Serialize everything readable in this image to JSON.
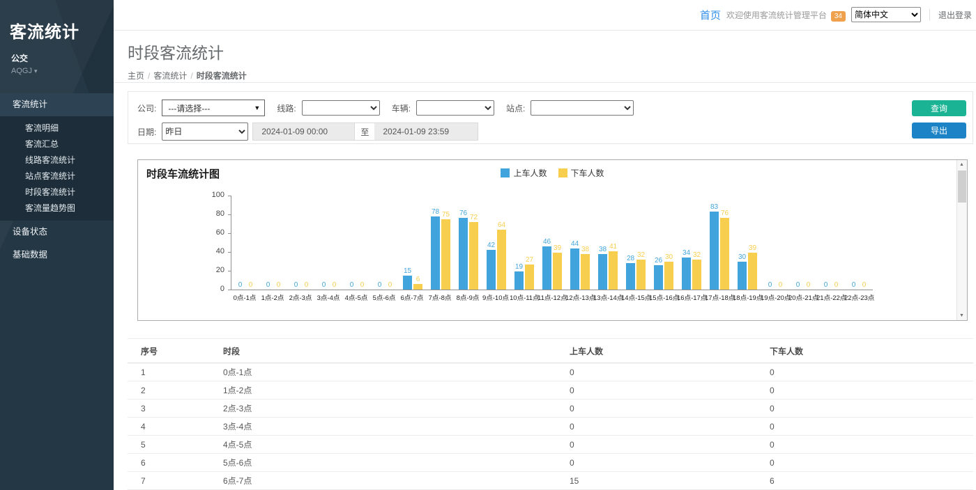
{
  "sidebar": {
    "brand": "客流统计",
    "org": "公交",
    "agency": "AQGJ",
    "sections": [
      {
        "label": "客流统计",
        "expanded": true,
        "active_child": "时段客流统计",
        "children": [
          "客流明细",
          "客流汇总",
          "线路客流统计",
          "站点客流统计",
          "时段客流统计",
          "客流量趋势图"
        ]
      },
      {
        "label": "设备状态",
        "expanded": false,
        "children": []
      },
      {
        "label": "基础数据",
        "expanded": false,
        "children": []
      }
    ]
  },
  "topbar": {
    "home": "首页",
    "welcome": "欢迎使用客流统计管理平台",
    "badge": "34",
    "language": "简体中文",
    "logout": "退出登录"
  },
  "page": {
    "title": "时段客流统计",
    "breadcrumb": [
      "主页",
      "客流统计",
      "时段客流统计"
    ]
  },
  "filters": {
    "company_label": "公司:",
    "company_value": "---请选择---",
    "line_label": "线路:",
    "vehicle_label": "车辆:",
    "station_label": "站点:",
    "date_label": "日期:",
    "date_preset": "昨日",
    "date_start": "2024-01-09 00:00",
    "date_to_label": "至",
    "date_end": "2024-01-09 23:59",
    "query_button": "查询",
    "export_button": "导出"
  },
  "colors": {
    "boarding_blue": "#41a4dc",
    "alighting_yellow": "#f8ce4e",
    "query_green": "#1ab394",
    "export_blue": "#1c84c6",
    "badge_orange": "#efa14d",
    "home_link_blue": "#2e8ded",
    "sidebar_dark": "#243744"
  },
  "chart_data": {
    "type": "bar",
    "title": "时段车流统计图",
    "categories": [
      "0点-1点",
      "1点-2点",
      "2点-3点",
      "3点-4点",
      "4点-5点",
      "5点-6点",
      "6点-7点",
      "7点-8点",
      "8点-9点",
      "9点-10点",
      "10点-11点",
      "11点-12点",
      "12点-13点",
      "13点-14点",
      "14点-15点",
      "15点-16点",
      "16点-17点",
      "17点-18点",
      "18点-19点",
      "19点-20点",
      "20点-21点",
      "21点-22点",
      "22点-23点"
    ],
    "series": [
      {
        "name": "上车人数",
        "color": "#41a4dc",
        "values": [
          0,
          0,
          0,
          0,
          0,
          0,
          15,
          78,
          76,
          42,
          19,
          46,
          44,
          38,
          28,
          26,
          34,
          83,
          30,
          0,
          0,
          0,
          0
        ]
      },
      {
        "name": "下车人数",
        "color": "#f8ce4e",
        "values": [
          0,
          0,
          0,
          0,
          0,
          0,
          6,
          75,
          72,
          64,
          27,
          39,
          38,
          41,
          32,
          30,
          32,
          76,
          39,
          0,
          0,
          0,
          0
        ]
      }
    ],
    "ylim": [
      0,
      100
    ],
    "yticks": [
      0,
      20,
      40,
      60,
      80,
      100
    ],
    "grid": false,
    "legend_position": "top-center"
  },
  "table": {
    "columns": [
      "序号",
      "时段",
      "上车人数",
      "下车人数"
    ],
    "rows": [
      [
        "1",
        "0点-1点",
        "0",
        "0"
      ],
      [
        "2",
        "1点-2点",
        "0",
        "0"
      ],
      [
        "3",
        "2点-3点",
        "0",
        "0"
      ],
      [
        "4",
        "3点-4点",
        "0",
        "0"
      ],
      [
        "5",
        "4点-5点",
        "0",
        "0"
      ],
      [
        "6",
        "5点-6点",
        "0",
        "0"
      ],
      [
        "7",
        "6点-7点",
        "15",
        "6"
      ]
    ]
  }
}
